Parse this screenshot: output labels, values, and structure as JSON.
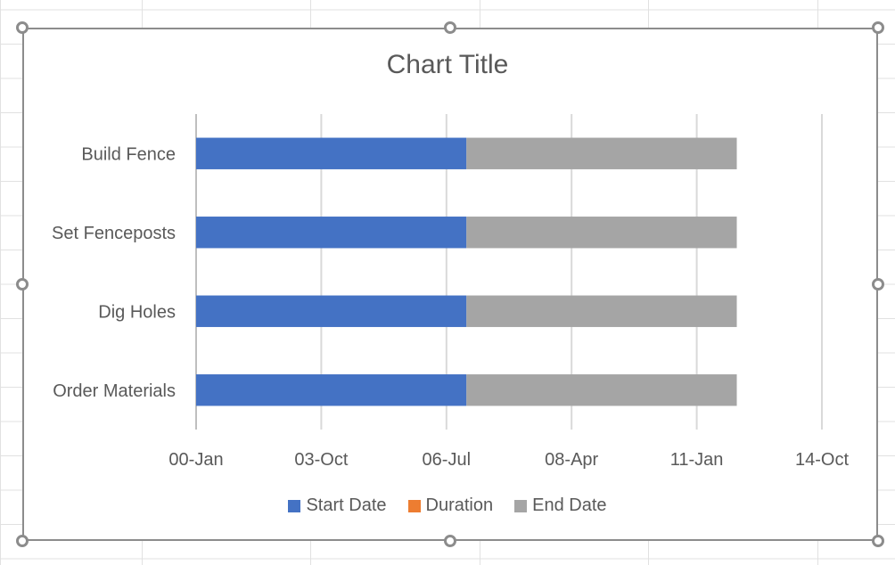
{
  "chart_data": {
    "type": "bar",
    "orientation": "horizontal",
    "stacked": true,
    "title": "Chart Title",
    "categories": [
      "Order Materials",
      "Dig Holes",
      "Set Fenceposts",
      "Build Fence"
    ],
    "x_ticks": [
      "00-Jan",
      "03-Oct",
      "06-Jul",
      "08-Apr",
      "11-Jan",
      "14-Oct"
    ],
    "xlim": [
      0,
      50000
    ],
    "x_tick_values": [
      0,
      10000,
      20000,
      30000,
      40000,
      50000
    ],
    "series": [
      {
        "name": "Start Date",
        "color": "#4472c4",
        "values": [
          21600,
          21600,
          21600,
          21600
        ]
      },
      {
        "name": "Duration",
        "color": "#ed7d31",
        "values": [
          0,
          0,
          0,
          0
        ]
      },
      {
        "name": "End Date",
        "color": "#a5a5a5",
        "values": [
          21600,
          21600,
          21600,
          21600
        ]
      }
    ],
    "legend_position": "bottom",
    "grid": "vertical"
  }
}
